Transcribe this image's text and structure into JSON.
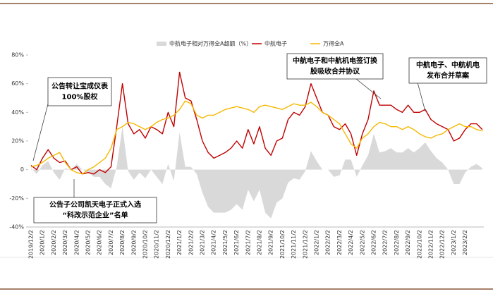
{
  "chart_data": {
    "type": "line",
    "legend": "top",
    "categories": [
      "2019/12/2",
      null,
      "2020/1/2",
      null,
      "2020/2/2",
      null,
      "2020/3/2",
      null,
      "2020/4/2",
      null,
      "2020/5/2",
      null,
      "2020/6/2",
      null,
      "2020/7/2",
      null,
      "2020/8/2",
      null,
      "2020/9/2",
      null,
      "2020/10/2",
      null,
      "2020/11/2",
      null,
      "2020/12/2",
      null,
      "2021/1/2",
      null,
      "2021/2/2",
      null,
      "2021/3/2",
      null,
      "2021/4/2",
      null,
      "2021/5/2",
      null,
      "2021/6/2",
      null,
      "2021/7/2",
      null,
      "2021/8/2",
      null,
      "2021/9/2",
      null,
      "2021/10/2",
      null,
      "2021/11/2",
      null,
      "2021/12/2",
      null,
      "2022/1/2",
      null,
      "2022/2/2",
      null,
      "2022/3/2",
      null,
      "2022/4/2",
      null,
      "2022/5/2",
      null,
      "2022/6/2",
      null,
      "2022/7/2",
      null,
      "2022/8/2",
      null,
      "2022/9/2",
      null,
      "2022/10/2",
      null,
      "2022/11/2",
      null,
      "2022/12/2",
      null,
      "2023/1/2",
      null,
      "2023/2/2",
      null,
      null,
      null
    ],
    "series": [
      {
        "name": "中航电子相对万得全A超额（%）",
        "color": "#d9d9d9",
        "kind": "area",
        "values": [
          1,
          -3,
          3,
          6,
          -2,
          -7,
          1,
          0,
          4,
          0,
          -2,
          -5,
          -5,
          -10,
          -13,
          2,
          30,
          -1,
          -7,
          -2,
          -6,
          0,
          -5,
          -10,
          4,
          -8,
          26,
          2,
          2,
          -3,
          -16,
          -26,
          -30,
          -30,
          -30,
          -28,
          -24,
          -28,
          -14,
          -22,
          -14,
          -30,
          -34,
          -23,
          -20,
          -9,
          -6,
          -7,
          -1,
          13,
          6,
          0,
          0,
          -5,
          -4,
          7,
          7,
          -5,
          3,
          10,
          25,
          12,
          13,
          15,
          12,
          12,
          15,
          12,
          15,
          19,
          13,
          8,
          5,
          0,
          -10,
          -10,
          -2,
          2,
          4,
          1
        ]
      },
      {
        "name": "中航电子",
        "color": "#c00000",
        "kind": "line",
        "values": [
          3,
          0,
          8,
          14,
          8,
          5,
          6,
          0,
          2,
          -3,
          -2,
          -3,
          0,
          -2,
          2,
          30,
          60,
          32,
          25,
          28,
          22,
          30,
          28,
          25,
          40,
          30,
          68,
          50,
          48,
          35,
          20,
          12,
          8,
          10,
          12,
          15,
          20,
          15,
          28,
          18,
          30,
          15,
          10,
          20,
          22,
          35,
          40,
          38,
          44,
          60,
          50,
          40,
          38,
          30,
          28,
          32,
          25,
          10,
          25,
          35,
          55,
          45,
          45,
          45,
          42,
          40,
          45,
          40,
          40,
          42,
          35,
          32,
          30,
          28,
          20,
          22,
          28,
          32,
          32,
          28
        ]
      },
      {
        "name": "万得全A",
        "color": "#f5b800",
        "kind": "line",
        "values": [
          2,
          3,
          5,
          8,
          10,
          12,
          5,
          0,
          -2,
          -3,
          0,
          2,
          5,
          8,
          15,
          28,
          30,
          33,
          32,
          30,
          28,
          30,
          33,
          35,
          36,
          38,
          42,
          48,
          46,
          38,
          36,
          38,
          38,
          40,
          42,
          43,
          44,
          43,
          42,
          40,
          44,
          45,
          44,
          43,
          42,
          44,
          46,
          45,
          45,
          47,
          44,
          40,
          38,
          35,
          32,
          25,
          18,
          15,
          22,
          25,
          30,
          33,
          32,
          30,
          30,
          28,
          30,
          28,
          25,
          23,
          22,
          24,
          25,
          28,
          30,
          32,
          30,
          30,
          28,
          27
        ]
      }
    ],
    "ylim": [
      -40,
      80
    ],
    "yticks": [
      {
        "value": -40,
        "label": "-40%"
      },
      {
        "value": -20,
        "label": "-20%"
      },
      0,
      {
        "value": 20,
        "label": "20%"
      },
      {
        "value": 40,
        "label": "40%"
      },
      {
        "value": 60,
        "label": "60%"
      },
      {
        "value": 80,
        "label": "80%"
      }
    ],
    "annotations": [
      {
        "lines": [
          "公告转让宝成仪表",
          "100%股权"
        ]
      },
      {
        "lines": [
          "公告子公司凯天电子正式入选",
          "“科改示范企业”名单"
        ]
      },
      {
        "lines": [
          "中航电子和中航机电签订换",
          "股吸收合并协议"
        ]
      },
      {
        "lines": [
          "中航电子、中航机电",
          "发布合并草案"
        ]
      }
    ]
  }
}
